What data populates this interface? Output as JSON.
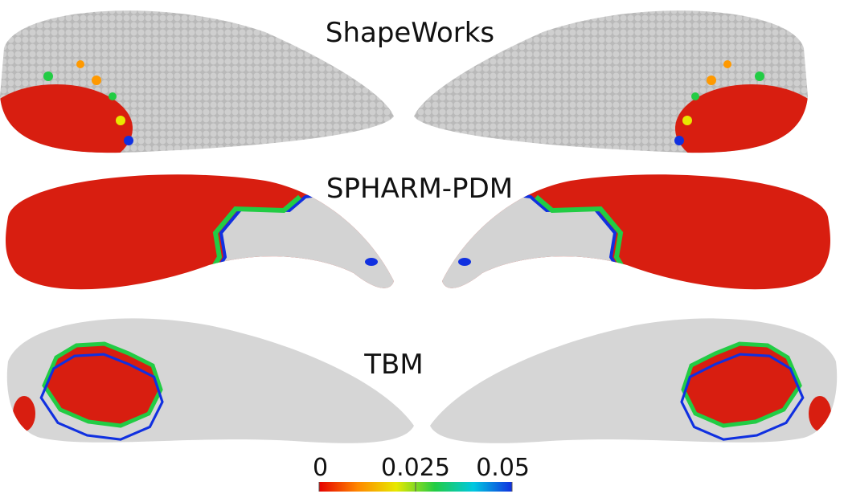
{
  "panels": [
    {
      "label": "ShapeWorks"
    },
    {
      "label": "SPHARM-PDM"
    },
    {
      "label": "TBM"
    }
  ],
  "colorbar": {
    "ticks": [
      0,
      0.025,
      0.05
    ]
  }
}
